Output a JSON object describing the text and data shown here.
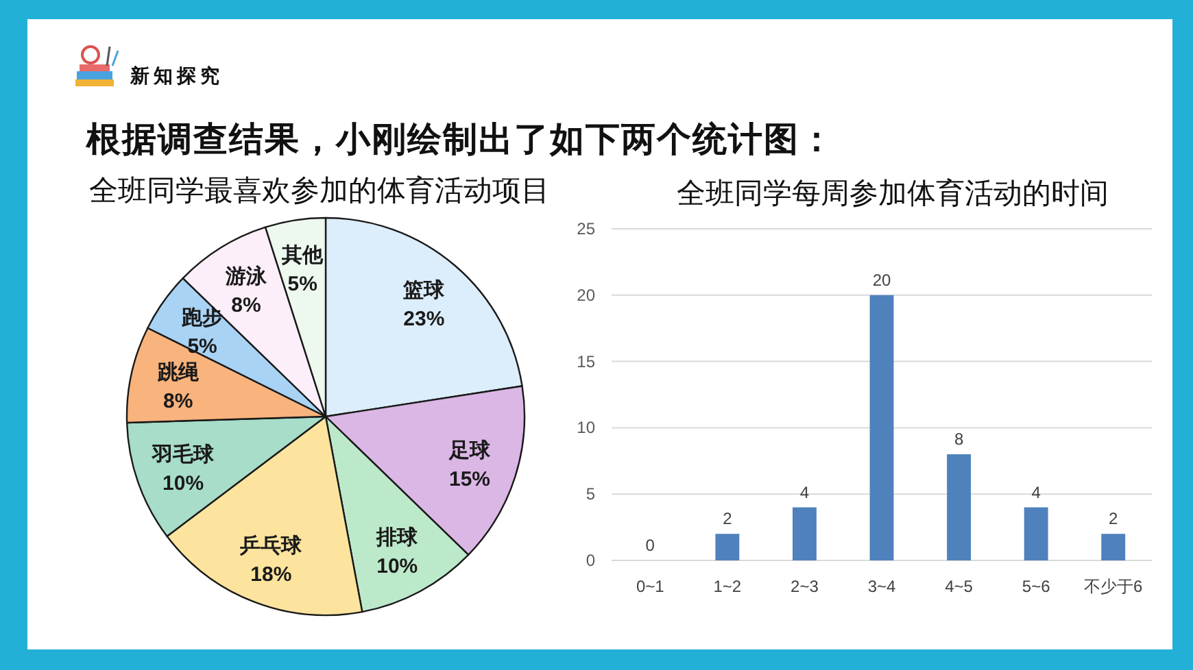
{
  "chart_data": [
    {
      "type": "pie",
      "title": "全班同学最喜欢参加的体育活动项目",
      "annotations": [
        "新知探究",
        "根据调查结果，小刚绘制出了如下两个统计图："
      ],
      "categories": [
        "篮球",
        "足球",
        "排球",
        "乒乓球",
        "羽毛球",
        "跳绳",
        "跑步",
        "游泳",
        "其他"
      ],
      "values": [
        23,
        15,
        10,
        18,
        10,
        8,
        5,
        8,
        5
      ],
      "colors": [
        "#dcedfb",
        "#dbb7e5",
        "#bde9cb",
        "#fde49e",
        "#a7ddc9",
        "#f9b37c",
        "#a9d3f4",
        "#fdeffa",
        "#edf9ef"
      ],
      "value_labels": [
        "23%",
        "15%",
        "10%",
        "18%",
        "10%",
        "8%",
        "5%",
        "8%",
        "5%"
      ]
    },
    {
      "type": "bar",
      "title": "全班同学每周参加体育活动的时间",
      "categories": [
        "0~1",
        "1~2",
        "2~3",
        "3~4",
        "4~5",
        "5~6",
        "不少于6"
      ],
      "values": [
        0,
        2,
        4,
        20,
        8,
        4,
        2
      ],
      "color": "#4f81bd",
      "ylim": [
        0,
        25
      ],
      "yticks": [
        0,
        5,
        10,
        15,
        20,
        25
      ],
      "grid": "y",
      "data_labels": true
    }
  ]
}
